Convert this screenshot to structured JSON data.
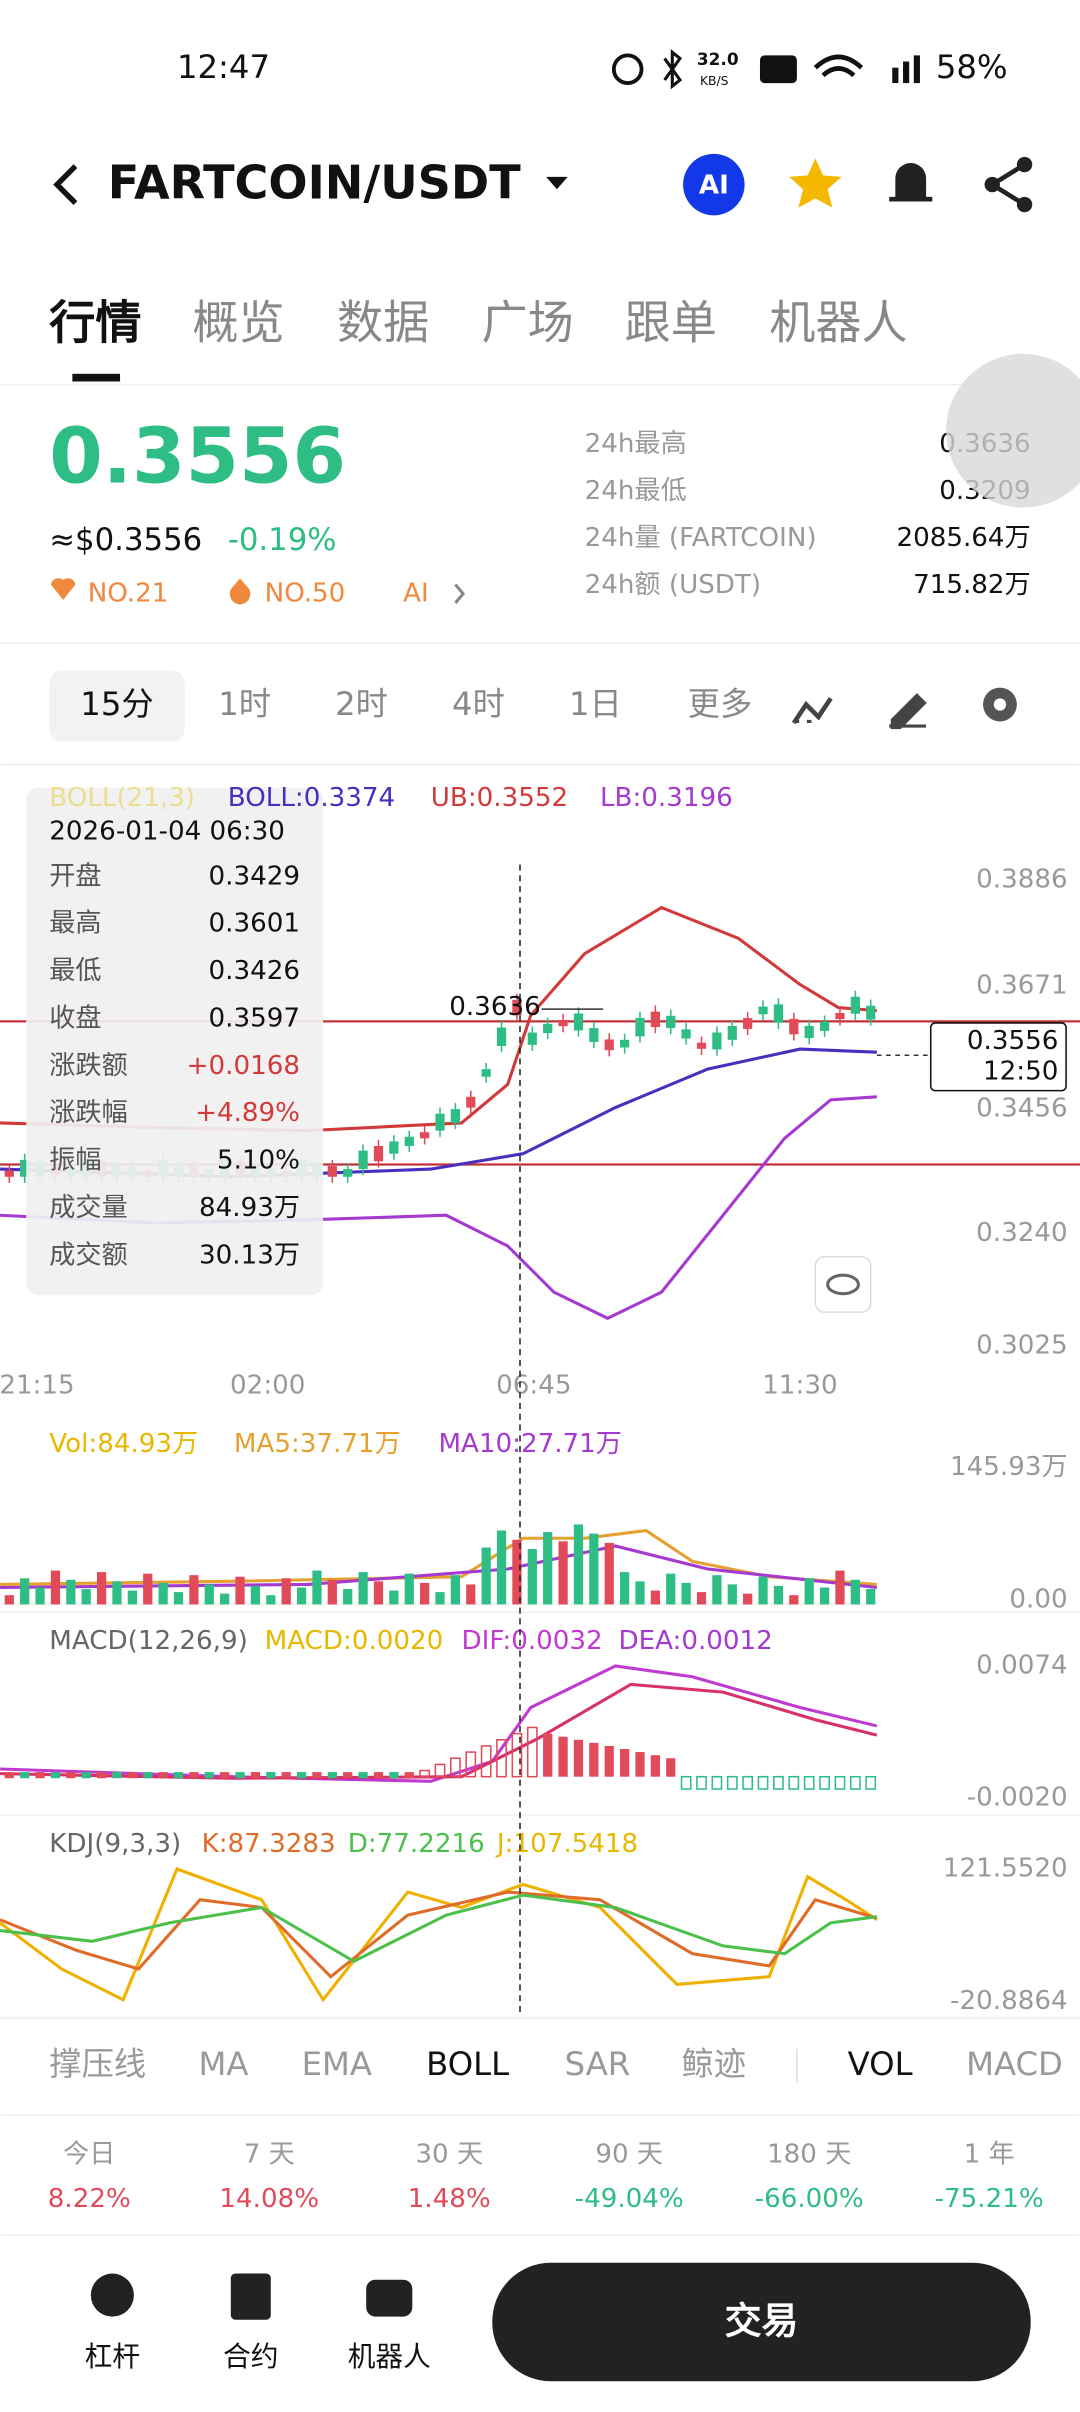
{
  "status": {
    "time": "12:47",
    "speed": "32.0",
    "speed_unit": "KB/S",
    "battery": "58%"
  },
  "header": {
    "pair": "FARTCOIN/USDT",
    "ai": "AI"
  },
  "tabs": [
    "行情",
    "概览",
    "数据",
    "广场",
    "跟单",
    "机器人"
  ],
  "price": {
    "last": "0.3556",
    "fiat": "≈$0.3556",
    "change": "-0.19%",
    "rank1": "NO.21",
    "rank2": "NO.50",
    "ai": "AI"
  },
  "stats": [
    {
      "label": "24h最高",
      "value": "0.3636"
    },
    {
      "label": "24h最低",
      "value": "0.3209"
    },
    {
      "label": "24h量 (FARTCOIN)",
      "value": "2085.64万"
    },
    {
      "label": "24h额 (USDT)",
      "value": "715.82万"
    }
  ],
  "intervals": [
    "15分",
    "1时",
    "2时",
    "4时",
    "1日",
    "更多"
  ],
  "boll": {
    "legend": [
      "BOLL(21,3)",
      "BOLL:0.3374",
      "UB:0.3552",
      "LB:0.3196"
    ],
    "axis": [
      "0.3886",
      "0.3671",
      "0.3456",
      "0.3240",
      "0.3025"
    ],
    "time_axis": [
      "21:15",
      "02:00",
      "06:45",
      "11:30"
    ],
    "high_marker": "0.3636",
    "current": "0.3556",
    "current_time": "12:50"
  },
  "tooltip": {
    "date": "2026-01-04 06:30",
    "rows": [
      {
        "label": "开盘",
        "value": "0.3429"
      },
      {
        "label": "最高",
        "value": "0.3601"
      },
      {
        "label": "最低",
        "value": "0.3426"
      },
      {
        "label": "收盘",
        "value": "0.3597"
      },
      {
        "label": "涨跌额",
        "value": "+0.0168"
      },
      {
        "label": "涨跌幅",
        "value": "+4.89%"
      },
      {
        "label": "振幅",
        "value": "5.10%"
      },
      {
        "label": "成交量",
        "value": "84.93万"
      },
      {
        "label": "成交额",
        "value": "30.13万"
      }
    ]
  },
  "vol": {
    "legend": [
      "Vol:84.93万",
      "MA5:37.71万",
      "MA10:27.71万"
    ],
    "axis": [
      "145.93万",
      "0.00"
    ]
  },
  "macd": {
    "legend": [
      "MACD(12,26,9)",
      "MACD:0.0020",
      "DIF:0.0032",
      "DEA:0.0012"
    ],
    "axis": [
      "0.0074",
      "-0.0020"
    ]
  },
  "kdj": {
    "legend": [
      "KDJ(9,3,3)",
      "K:87.3283",
      "D:77.2216",
      "J:107.5418"
    ],
    "axis": [
      "121.5520",
      "-20.8864"
    ]
  },
  "indicators": [
    "撑压线",
    "MA",
    "EMA",
    "BOLL",
    "SAR",
    "鲸迹",
    "VOL",
    "MACD"
  ],
  "performance": [
    {
      "label": "今日",
      "value": "8.22%"
    },
    {
      "label": "7 天",
      "value": "14.08%"
    },
    {
      "label": "30 天",
      "value": "1.48%"
    },
    {
      "label": "90 天",
      "value": "-49.04%"
    },
    {
      "label": "180 天",
      "value": "-66.00%"
    },
    {
      "label": "1 年",
      "value": "-75.21%"
    }
  ],
  "bottom": {
    "items": [
      "杠杆",
      "合约",
      "机器人"
    ],
    "trade": "交易"
  }
}
